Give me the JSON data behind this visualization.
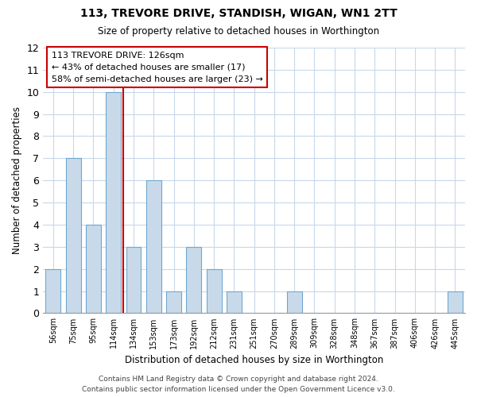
{
  "title": "113, TREVORE DRIVE, STANDISH, WIGAN, WN1 2TT",
  "subtitle": "Size of property relative to detached houses in Worthington",
  "xlabel": "Distribution of detached houses by size in Worthington",
  "ylabel": "Number of detached properties",
  "bin_labels": [
    "56sqm",
    "75sqm",
    "95sqm",
    "114sqm",
    "134sqm",
    "153sqm",
    "173sqm",
    "192sqm",
    "212sqm",
    "231sqm",
    "251sqm",
    "270sqm",
    "289sqm",
    "309sqm",
    "328sqm",
    "348sqm",
    "367sqm",
    "387sqm",
    "406sqm",
    "426sqm",
    "445sqm"
  ],
  "bar_values": [
    2,
    7,
    4,
    10,
    3,
    6,
    1,
    3,
    2,
    1,
    0,
    0,
    1,
    0,
    0,
    0,
    0,
    0,
    0,
    0,
    1
  ],
  "bar_color": "#c8daea",
  "bar_edge_color": "#6ea8d0",
  "highlight_line_color": "#cc0000",
  "ylim": [
    0,
    12
  ],
  "yticks": [
    0,
    1,
    2,
    3,
    4,
    5,
    6,
    7,
    8,
    9,
    10,
    11,
    12
  ],
  "annotation_line1": "113 TREVORE DRIVE: 126sqm",
  "annotation_line2": "← 43% of detached houses are smaller (17)",
  "annotation_line3": "58% of semi-detached houses are larger (23) →",
  "footer_line1": "Contains HM Land Registry data © Crown copyright and database right 2024.",
  "footer_line2": "Contains public sector information licensed under the Open Government Licence v3.0.",
  "background_color": "#ffffff",
  "grid_color": "#c8d8ea"
}
